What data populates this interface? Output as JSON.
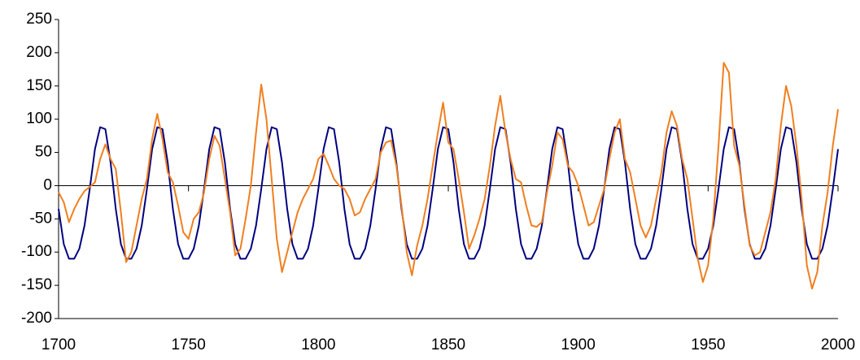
{
  "chart_data": {
    "type": "line",
    "x": [
      1700,
      1702,
      1704,
      1706,
      1708,
      1710,
      1712,
      1714,
      1716,
      1718,
      1720,
      1722,
      1724,
      1726,
      1728,
      1730,
      1732,
      1734,
      1736,
      1738,
      1740,
      1742,
      1744,
      1746,
      1748,
      1750,
      1752,
      1754,
      1756,
      1758,
      1760,
      1762,
      1764,
      1766,
      1768,
      1770,
      1772,
      1774,
      1776,
      1778,
      1780,
      1782,
      1784,
      1786,
      1788,
      1790,
      1792,
      1794,
      1796,
      1798,
      1800,
      1802,
      1804,
      1806,
      1808,
      1810,
      1812,
      1814,
      1816,
      1818,
      1820,
      1822,
      1824,
      1826,
      1828,
      1830,
      1832,
      1834,
      1836,
      1838,
      1840,
      1842,
      1844,
      1846,
      1848,
      1850,
      1852,
      1854,
      1856,
      1858,
      1860,
      1862,
      1864,
      1866,
      1868,
      1870,
      1872,
      1874,
      1876,
      1878,
      1880,
      1882,
      1884,
      1886,
      1888,
      1890,
      1892,
      1894,
      1896,
      1898,
      1900,
      1902,
      1904,
      1906,
      1908,
      1910,
      1912,
      1914,
      1916,
      1918,
      1920,
      1922,
      1924,
      1926,
      1928,
      1930,
      1932,
      1934,
      1936,
      1938,
      1940,
      1942,
      1944,
      1946,
      1948,
      1950,
      1952,
      1954,
      1956,
      1958,
      1960,
      1962,
      1964,
      1966,
      1968,
      1970,
      1972,
      1974,
      1976,
      1978,
      1980,
      1982,
      1984,
      1986,
      1988,
      1990,
      1992,
      1994,
      1996,
      1998,
      2000
    ],
    "series": [
      {
        "color": "#000080",
        "values": [
          -35,
          -88,
          -110,
          -110,
          -95,
          -60,
          -5,
          55,
          88,
          85,
          35,
          -35,
          -88,
          -110,
          -110,
          -95,
          -60,
          -5,
          55,
          88,
          85,
          35,
          -35,
          -88,
          -110,
          -110,
          -95,
          -60,
          -5,
          55,
          88,
          85,
          35,
          -35,
          -88,
          -110,
          -110,
          -95,
          -60,
          -5,
          55,
          88,
          85,
          35,
          -35,
          -88,
          -110,
          -110,
          -95,
          -60,
          -5,
          55,
          88,
          85,
          35,
          -35,
          -88,
          -110,
          -110,
          -95,
          -60,
          -5,
          55,
          88,
          85,
          35,
          -35,
          -88,
          -110,
          -110,
          -95,
          -60,
          -5,
          55,
          88,
          85,
          35,
          -35,
          -88,
          -110,
          -110,
          -95,
          -60,
          -5,
          55,
          88,
          85,
          35,
          -35,
          -88,
          -110,
          -110,
          -95,
          -60,
          -5,
          55,
          88,
          85,
          35,
          -35,
          -88,
          -110,
          -110,
          -95,
          -60,
          -5,
          55,
          88,
          85,
          35,
          -35,
          -88,
          -110,
          -110,
          -95,
          -60,
          -5,
          55,
          88,
          85,
          35,
          -35,
          -88,
          -110,
          -110,
          -95,
          -60,
          -5,
          55,
          88,
          85,
          35,
          -35,
          -88,
          -110,
          -110,
          -95,
          -60,
          -5,
          55,
          88,
          85,
          35,
          -35,
          -88,
          -110,
          -110,
          -95,
          -60,
          -5,
          55
        ]
      },
      {
        "color": "#f07f1f",
        "values": [
          -10,
          -25,
          -55,
          -35,
          -20,
          -8,
          -2,
          5,
          40,
          62,
          40,
          25,
          -40,
          -115,
          -100,
          -60,
          -20,
          10,
          70,
          108,
          70,
          20,
          5,
          -30,
          -70,
          -80,
          -50,
          -40,
          -10,
          40,
          75,
          60,
          10,
          -40,
          -105,
          -95,
          -50,
          0,
          80,
          152,
          100,
          10,
          -80,
          -130,
          -100,
          -70,
          -40,
          -20,
          -5,
          10,
          40,
          48,
          30,
          10,
          0,
          -5,
          -20,
          -45,
          -40,
          -20,
          -5,
          10,
          50,
          65,
          68,
          30,
          -30,
          -100,
          -135,
          -90,
          -60,
          -20,
          30,
          80,
          125,
          65,
          55,
          10,
          -40,
          -95,
          -75,
          -50,
          -20,
          30,
          90,
          135,
          80,
          40,
          10,
          5,
          -30,
          -60,
          -62,
          -55,
          -10,
          30,
          80,
          70,
          30,
          20,
          0,
          -30,
          -60,
          -55,
          -30,
          -5,
          40,
          80,
          100,
          40,
          20,
          -20,
          -60,
          -78,
          -60,
          -20,
          20,
          80,
          112,
          90,
          40,
          10,
          -50,
          -110,
          -145,
          -120,
          -50,
          60,
          185,
          170,
          60,
          30,
          -30,
          -90,
          -105,
          -100,
          -70,
          -40,
          10,
          90,
          150,
          120,
          60,
          -20,
          -120,
          -155,
          -130,
          -60,
          -10,
          60,
          115
        ]
      }
    ],
    "xlim": [
      1700,
      2000
    ],
    "xticks": [
      1700,
      1750,
      1800,
      1850,
      1900,
      1950,
      2000
    ],
    "ylim": [
      -200,
      250
    ],
    "yticks": [
      -200,
      -150,
      -100,
      -50,
      0,
      50,
      100,
      150,
      200,
      250
    ]
  }
}
